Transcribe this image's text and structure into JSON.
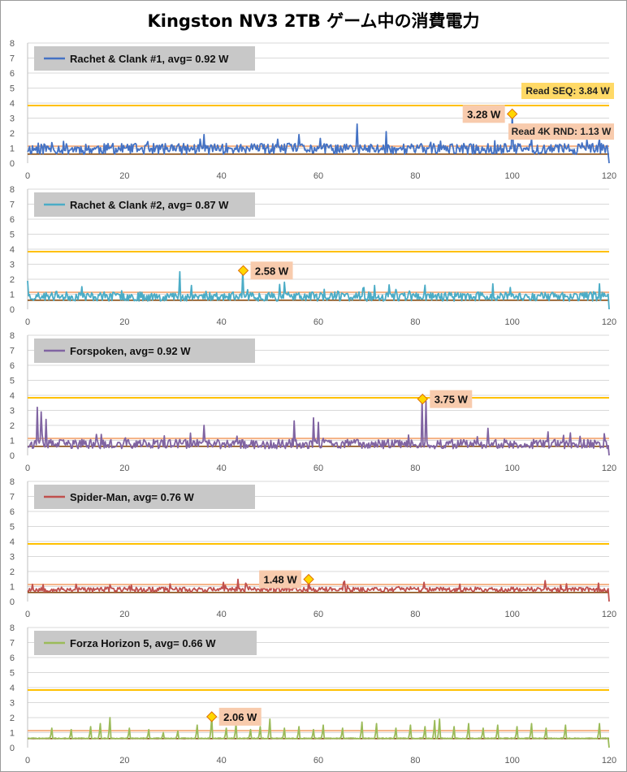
{
  "title": "Kingston NV3 2TB ゲーム中の消費電力",
  "colors": {
    "grid": "#d9d9d9",
    "axis": "#bfbfbf",
    "ref_seq": "#ffc000",
    "ref_4k": "#f4b183",
    "baseline": "#7f3f00",
    "label_bg": "#f8cbad",
    "seq_label_bg": "#ffd966",
    "legend_bg": "#c8c8c8",
    "marker_fill": "#ffd700",
    "marker_stroke": "#e07000"
  },
  "chart_data": [
    {
      "type": "line",
      "series": [
        {
          "name": "Rachet & Clank #1",
          "color": "#4472c4",
          "pattern": "noisy",
          "baseline": 0.95,
          "amp": 0.45,
          "seed": 11,
          "spikes": [
            [
              36.5,
              1.9
            ],
            [
              56,
              1.9
            ],
            [
              68,
              2.6
            ],
            [
              74,
              2.1
            ],
            [
              100,
              3.28
            ],
            [
              104,
              1.6
            ],
            [
              118,
              1.6
            ]
          ]
        }
      ],
      "legend": "Rachet & Clank #1,  avg=  0.92 W",
      "avg_label": "avg= 0.92 W",
      "xlim": [
        0,
        120
      ],
      "ylim": [
        0,
        8
      ],
      "x_ticks": [
        0,
        20,
        40,
        60,
        80,
        100,
        120
      ],
      "y_ticks": [
        0,
        1,
        2,
        3,
        4,
        5,
        6,
        7,
        8
      ],
      "grid": true,
      "ref_lines": [
        {
          "name": "Read SEQ",
          "value": 3.84,
          "label": "Read SEQ:  3.84 W"
        },
        {
          "name": "Read 4K RND",
          "value": 1.13,
          "label": "Read 4K RND:  1.13 W"
        }
      ],
      "peak": {
        "x": 100,
        "y": 3.28,
        "label": "3.28 W"
      }
    },
    {
      "type": "line",
      "series": [
        {
          "name": "Rachet & Clank #2",
          "color": "#4bacc6",
          "pattern": "noisy",
          "baseline": 0.85,
          "amp": 0.38,
          "seed": 23,
          "spikes": [
            [
              0,
              1.9
            ],
            [
              31.5,
              2.5
            ],
            [
              44.5,
              2.58
            ],
            [
              53,
              1.8
            ],
            [
              82,
              1.6
            ],
            [
              96,
              1.7
            ],
            [
              118,
              1.7
            ]
          ]
        }
      ],
      "legend": "Rachet & Clank #2,  avg=  0.87 W",
      "xlim": [
        0,
        120
      ],
      "ylim": [
        0,
        8
      ],
      "x_ticks": [
        0,
        20,
        40,
        60,
        80,
        100,
        120
      ],
      "y_ticks": [
        0,
        1,
        2,
        3,
        4,
        5,
        6,
        7,
        8
      ],
      "grid": true,
      "ref_lines": [
        {
          "value": 3.84
        },
        {
          "value": 1.13
        }
      ],
      "peak": {
        "x": 44.5,
        "y": 2.58,
        "label": "2.58 W"
      }
    },
    {
      "type": "line",
      "series": [
        {
          "name": "Forspoken",
          "color": "#8064a2",
          "pattern": "noisy",
          "baseline": 0.75,
          "amp": 0.4,
          "seed": 37,
          "spikes": [
            [
              2,
              3.2
            ],
            [
              2.8,
              2.9
            ],
            [
              3.8,
              2.4
            ],
            [
              36.5,
              2.0
            ],
            [
              55,
              2.3
            ],
            [
              59,
              2.5
            ],
            [
              60,
              2.2
            ],
            [
              81.5,
              3.75
            ],
            [
              82.2,
              3.6
            ],
            [
              95,
              1.8
            ],
            [
              112,
              1.5
            ]
          ]
        }
      ],
      "legend": "Forspoken,  avg=  0.92 W",
      "xlim": [
        0,
        120
      ],
      "ylim": [
        0,
        8
      ],
      "x_ticks": [
        0,
        20,
        40,
        60,
        80,
        100,
        120
      ],
      "y_ticks": [
        0,
        1,
        2,
        3,
        4,
        5,
        6,
        7,
        8
      ],
      "grid": true,
      "ref_lines": [
        {
          "value": 3.84
        },
        {
          "value": 1.13
        }
      ],
      "peak": {
        "x": 81.5,
        "y": 3.75,
        "label": "3.75 W"
      }
    },
    {
      "type": "line",
      "series": [
        {
          "name": "Spider-Man",
          "color": "#c0504d",
          "pattern": "noisy",
          "baseline": 0.8,
          "amp": 0.2,
          "seed": 53,
          "spikes": [
            [
              58,
              1.48
            ],
            [
              10,
              1.15
            ],
            [
              110,
              1.1
            ]
          ]
        }
      ],
      "legend": "Spider-Man,  avg=  0.76 W",
      "xlim": [
        0,
        120
      ],
      "ylim": [
        0,
        8
      ],
      "x_ticks": [
        0,
        20,
        40,
        60,
        80,
        100,
        120
      ],
      "y_ticks": [
        0,
        1,
        2,
        3,
        4,
        5,
        6,
        7,
        8
      ],
      "grid": true,
      "ref_lines": [
        {
          "value": 3.84
        },
        {
          "value": 1.13
        }
      ],
      "peak": {
        "x": 58,
        "y": 1.48,
        "label": "1.48 W"
      }
    },
    {
      "type": "line",
      "series": [
        {
          "name": "Forza Horizon 5",
          "color": "#9bbb59",
          "pattern": "spiky",
          "baseline": 0.62,
          "amp": 0.05,
          "seed": 71,
          "spikes": [
            [
              5,
              1.3
            ],
            [
              9,
              1.2
            ],
            [
              13,
              1.4
            ],
            [
              15,
              1.6
            ],
            [
              17,
              2.0
            ],
            [
              21,
              1.3
            ],
            [
              25,
              1.2
            ],
            [
              28,
              1.0
            ],
            [
              31,
              1.1
            ],
            [
              35,
              1.5
            ],
            [
              38,
              2.06
            ],
            [
              41,
              1.3
            ],
            [
              43,
              1.6
            ],
            [
              46,
              1.2
            ],
            [
              48,
              1.4
            ],
            [
              50,
              1.9
            ],
            [
              53,
              1.3
            ],
            [
              56,
              1.4
            ],
            [
              59,
              1.2
            ],
            [
              61,
              1.5
            ],
            [
              65,
              1.3
            ],
            [
              69,
              1.7
            ],
            [
              72,
              1.6
            ],
            [
              76,
              1.3
            ],
            [
              79,
              1.5
            ],
            [
              82,
              1.4
            ],
            [
              84,
              1.8
            ],
            [
              85,
              1.9
            ],
            [
              88,
              1.4
            ],
            [
              91,
              1.6
            ],
            [
              94,
              1.3
            ],
            [
              97,
              1.5
            ],
            [
              101,
              1.4
            ],
            [
              104,
              1.6
            ],
            [
              107,
              1.3
            ],
            [
              111,
              1.5
            ],
            [
              118,
              1.6
            ]
          ]
        }
      ],
      "legend": "Forza Horizon 5,  avg=  0.66 W",
      "xlim": [
        0,
        120
      ],
      "ylim": [
        0,
        8
      ],
      "x_ticks": [
        0,
        20,
        40,
        60,
        80,
        100,
        120
      ],
      "y_ticks": [
        0,
        1,
        2,
        3,
        4,
        5,
        6,
        7,
        8
      ],
      "grid": true,
      "ref_lines": [
        {
          "value": 3.84
        },
        {
          "value": 1.13
        }
      ],
      "peak": {
        "x": 38,
        "y": 2.06,
        "label": "2.06 W"
      }
    }
  ]
}
